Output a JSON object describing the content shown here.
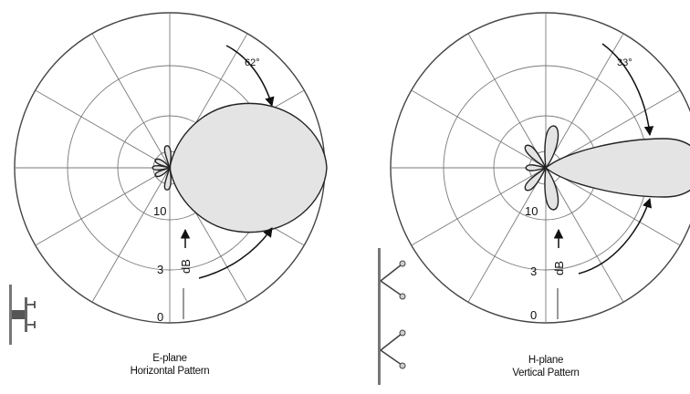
{
  "panels": [
    {
      "caption_line1": "E-plane",
      "caption_line2": "Horizontal Pattern",
      "beamwidth_label": "62°",
      "scale_labels": [
        "10",
        "3",
        "0"
      ],
      "db_label": "dB"
    },
    {
      "caption_line1": "H-plane",
      "caption_line2": "Vertical Pattern",
      "beamwidth_label": "33°",
      "scale_labels": [
        "10",
        "3",
        "0"
      ],
      "db_label": "dB"
    }
  ],
  "colors": {
    "lobe_fill": "#e4e4e4",
    "grid": "#7a7a7a",
    "outline": "#222222"
  }
}
